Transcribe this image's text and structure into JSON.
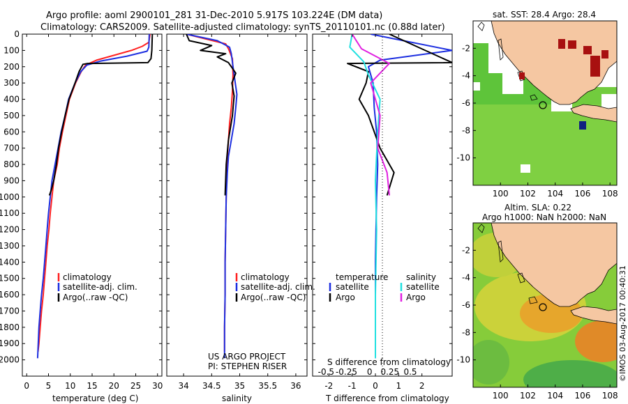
{
  "header": {
    "title_line1": "Argo profile: aoml 2900101_281 31-Dec-2010 5.917S 103.224E (DM data)",
    "title_line2": "Climatology: CARS2009. Satellite-adjusted climatology: synTS_20110101.nc (0.88d later)"
  },
  "colors": {
    "climatology": "#ff2020",
    "satellite": "#1c2ee0",
    "argo": "#000000",
    "sat_salinity": "#20e0e0",
    "argo_salinity": "#e020e0",
    "land": "#f5c7a2",
    "coast": "#000000"
  },
  "credits": {
    "line1": "US ARGO PROJECT",
    "line2": "PI: STEPHEN RISER",
    "imos_stamp": "©IMOS 03-Aug-2017 00:40:31"
  },
  "chart_data": [
    {
      "type": "line",
      "xlabel": "temperature (deg C)",
      "xlim": [
        -1,
        31
      ],
      "ylim": [
        2100,
        0
      ],
      "xticks": [
        0,
        5,
        10,
        15,
        20,
        25,
        30
      ],
      "yticks": [
        0,
        100,
        200,
        300,
        400,
        500,
        600,
        700,
        800,
        900,
        1000,
        1100,
        1200,
        1300,
        1400,
        1500,
        1600,
        1700,
        1800,
        1900,
        2000
      ],
      "legend": [
        "climatology",
        "satellite-adj. clim.",
        "Argo(..raw -QC)"
      ],
      "legend_position": "bottom-center",
      "series": [
        {
          "name": "climatology",
          "x": [
            28.3,
            28.0,
            26.5,
            24,
            20,
            16,
            13.5,
            12.5,
            11.2,
            9.8,
            9.0,
            8.2,
            7.5,
            7.0,
            6.2,
            5.8,
            5.4,
            5.1,
            4.7,
            4.4,
            4.1,
            3.8,
            3.4,
            3.1,
            2.8,
            2.6
          ],
          "y": [
            0,
            50,
            75,
            100,
            130,
            160,
            190,
            230,
            300,
            400,
            500,
            600,
            700,
            800,
            900,
            1000,
            1100,
            1200,
            1300,
            1400,
            1500,
            1600,
            1700,
            1800,
            1900,
            1950
          ]
        },
        {
          "name": "satellite-adj. clim.",
          "x": [
            28.1,
            28.0,
            27.6,
            23,
            17,
            13.8,
            12.4,
            11.1,
            9.6,
            8.8,
            7.9,
            7.2,
            6.5,
            5.8,
            5.4,
            5.0,
            4.7,
            4.4,
            4.1,
            3.8,
            3.4,
            3.1,
            2.8,
            2.5
          ],
          "y": [
            0,
            80,
            105,
            135,
            165,
            190,
            230,
            300,
            400,
            500,
            600,
            700,
            800,
            900,
            1000,
            1100,
            1200,
            1300,
            1400,
            1500,
            1600,
            1700,
            1800,
            1990
          ]
        },
        {
          "name": "Argo(..raw -QC)",
          "x": [
            28.8,
            28.7,
            28.5,
            27.8,
            20,
            14,
            12.9,
            12.0,
            11.1,
            9.7,
            8.8,
            8.0,
            7.3,
            6.8,
            6.2,
            5.6,
            5.2
          ],
          "y": [
            0,
            100,
            150,
            175,
            178,
            180,
            185,
            230,
            300,
            400,
            500,
            600,
            700,
            800,
            900,
            960,
            990
          ]
        }
      ]
    },
    {
      "type": "line",
      "xlabel": "salinity",
      "xlim": [
        33.7,
        36.2
      ],
      "ylim": [
        2100,
        0
      ],
      "xticks": [
        34,
        34.5,
        35,
        35.5,
        36
      ],
      "legend": [
        "climatology",
        "satellite-adj. clim.",
        "Argo(..raw -QC)"
      ],
      "legend_position": "bottom-center",
      "series": [
        {
          "name": "climatology",
          "x": [
            34.05,
            34.4,
            34.75,
            34.8,
            34.87,
            34.88,
            34.87,
            34.85,
            34.82,
            34.8,
            34.78,
            34.77,
            34.76,
            34.75,
            34.74,
            34.74,
            34.73,
            34.73
          ],
          "y": [
            0,
            30,
            60,
            90,
            150,
            250,
            350,
            450,
            550,
            650,
            750,
            850,
            1000,
            1200,
            1400,
            1600,
            1800,
            1950
          ]
        },
        {
          "name": "satellite-adj. clim.",
          "x": [
            34.05,
            34.6,
            34.82,
            34.85,
            34.9,
            34.95,
            34.93,
            34.9,
            34.85,
            34.8,
            34.78,
            34.76,
            34.75,
            34.74,
            34.74,
            34.73,
            34.73
          ],
          "y": [
            0,
            40,
            80,
            120,
            250,
            370,
            450,
            550,
            650,
            750,
            850,
            1000,
            1200,
            1400,
            1600,
            1800,
            1990
          ]
        },
        {
          "name": "Argo(..raw -QC)",
          "x": [
            34.05,
            34.1,
            34.5,
            34.3,
            34.75,
            34.6,
            34.8,
            34.93,
            34.86,
            34.9,
            34.87,
            34.8,
            34.76,
            34.74
          ],
          "y": [
            0,
            40,
            70,
            100,
            120,
            140,
            175,
            240,
            300,
            380,
            500,
            650,
            800,
            990
          ]
        }
      ]
    },
    {
      "type": "line",
      "xlabel": "T difference from climatology",
      "x2label": "S difference from climatology",
      "xlim": [
        -2.7,
        3.3
      ],
      "ylim": [
        2100,
        0
      ],
      "xticks": [
        -2,
        -1,
        0,
        1,
        2
      ],
      "x2ticks": [
        -0.5,
        -0.25,
        0,
        0.25,
        0.5
      ],
      "legend": [
        "temperature",
        "satellite",
        "Argo",
        "salinity",
        "satellite",
        "Argo"
      ],
      "legend_position": "bottom-center",
      "series": [
        {
          "name": "satellite",
          "x": [
            -0.2,
            3.3,
            0.2,
            -0.3,
            -0.1,
            -0.05,
            0.05,
            0.1,
            0.05,
            0.0,
            0.0,
            0.0
          ],
          "y": [
            0,
            100,
            160,
            200,
            300,
            450,
            600,
            800,
            1000,
            1400,
            1700,
            1990
          ]
        },
        {
          "name": "Argo",
          "x": [
            0.6,
            3.3,
            -1.2,
            -0.3,
            -0.4,
            -0.7,
            -0.3,
            0.2,
            0.8,
            0.5
          ],
          "y": [
            0,
            175,
            180,
            230,
            300,
            400,
            500,
            700,
            850,
            990
          ]
        },
        {
          "name": "satellite",
          "x": [
            -1.0,
            -1.1,
            -0.5,
            -0.3,
            0.2,
            0.1,
            0.0,
            0.05,
            0.0,
            0.0
          ],
          "y": [
            0,
            80,
            170,
            250,
            400,
            600,
            900,
            1200,
            1600,
            1990
          ]
        },
        {
          "name": "Argo",
          "x": [
            -1.0,
            -0.6,
            0.6,
            -0.2,
            0.2,
            0.1,
            0.5,
            0.6
          ],
          "y": [
            0,
            90,
            180,
            300,
            500,
            700,
            850,
            990
          ]
        }
      ]
    },
    {
      "type": "heatmap",
      "title": "sat. SST: 28.4 Argo: 28.4",
      "xlim": [
        98,
        108.5
      ],
      "ylim": [
        -12,
        0
      ],
      "xticks": [
        100,
        102,
        104,
        106,
        108
      ],
      "yticks": [
        -2,
        -4,
        -6,
        -8,
        -10
      ],
      "marker": {
        "lon": 103.224,
        "lat": -5.917
      }
    },
    {
      "type": "heatmap",
      "title_line1": "Altim. SLA: 0.22",
      "title_line2": "Argo h1000: NaN h2000: NaN",
      "xlim": [
        98,
        108.5
      ],
      "ylim": [
        -12,
        0
      ],
      "xticks": [
        100,
        102,
        104,
        106,
        108
      ],
      "yticks": [
        -2,
        -4,
        -6,
        -8,
        -10
      ],
      "marker": {
        "lon": 103.224,
        "lat": -5.917
      }
    }
  ]
}
